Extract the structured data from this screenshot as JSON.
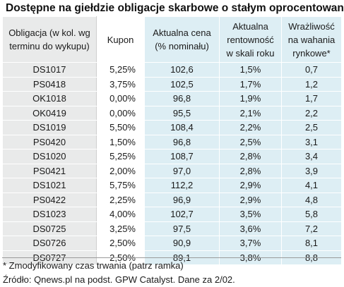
{
  "title": "Dostępne na giełdzie obligacje skarbowe o stałym oprocentowaniu",
  "headers": [
    "Obligacja (w kol. wg terminu do wykupu)",
    "Kupon",
    "Aktualna cena (% nominału)",
    "Aktualna rentowność w skali roku",
    "Wrażliwość na wahania rynkowe*"
  ],
  "rows": [
    [
      "DS1017",
      "5,25%",
      "102,6",
      "1,5%",
      "0,7"
    ],
    [
      "PS0418",
      "3,75%",
      "102,5",
      "1,7%",
      "1,2"
    ],
    [
      "OK1018",
      "0,00%",
      "96,8",
      "1,9%",
      "1,7"
    ],
    [
      "OK0419",
      "0,00%",
      "95,5",
      "2,1%",
      "2,2"
    ],
    [
      "DS1019",
      "5,50%",
      "108,4",
      "2,2%",
      "2,5"
    ],
    [
      "PS0420",
      "1,50%",
      "96,8",
      "2,5%",
      "3,1"
    ],
    [
      "DS1020",
      "5,25%",
      "108,7",
      "2,8%",
      "3,4"
    ],
    [
      "PS0421",
      "2,00%",
      "97,0",
      "2,8%",
      "3,9"
    ],
    [
      "DS1021",
      "5,75%",
      "112,2",
      "2,9%",
      "4,1"
    ],
    [
      "PS0422",
      "2,25%",
      "96,9",
      "2,9%",
      "4,8"
    ],
    [
      "DS1023",
      "4,00%",
      "102,7",
      "3,5%",
      "5,8"
    ],
    [
      "DS0725",
      "3,25%",
      "97,5",
      "3,6%",
      "7,2"
    ],
    [
      "DS0726",
      "2,50%",
      "90,9",
      "3,7%",
      "8,1"
    ],
    [
      "DS0727",
      "2,50%",
      "89,1",
      "3,8%",
      "8,8"
    ]
  ],
  "footnote": "* Zmodyfikowany czas trwania (patrz ramka)",
  "source": "Źródło: Qnews.pl na podst. GPW Catalyst. Dane za 2/02."
}
